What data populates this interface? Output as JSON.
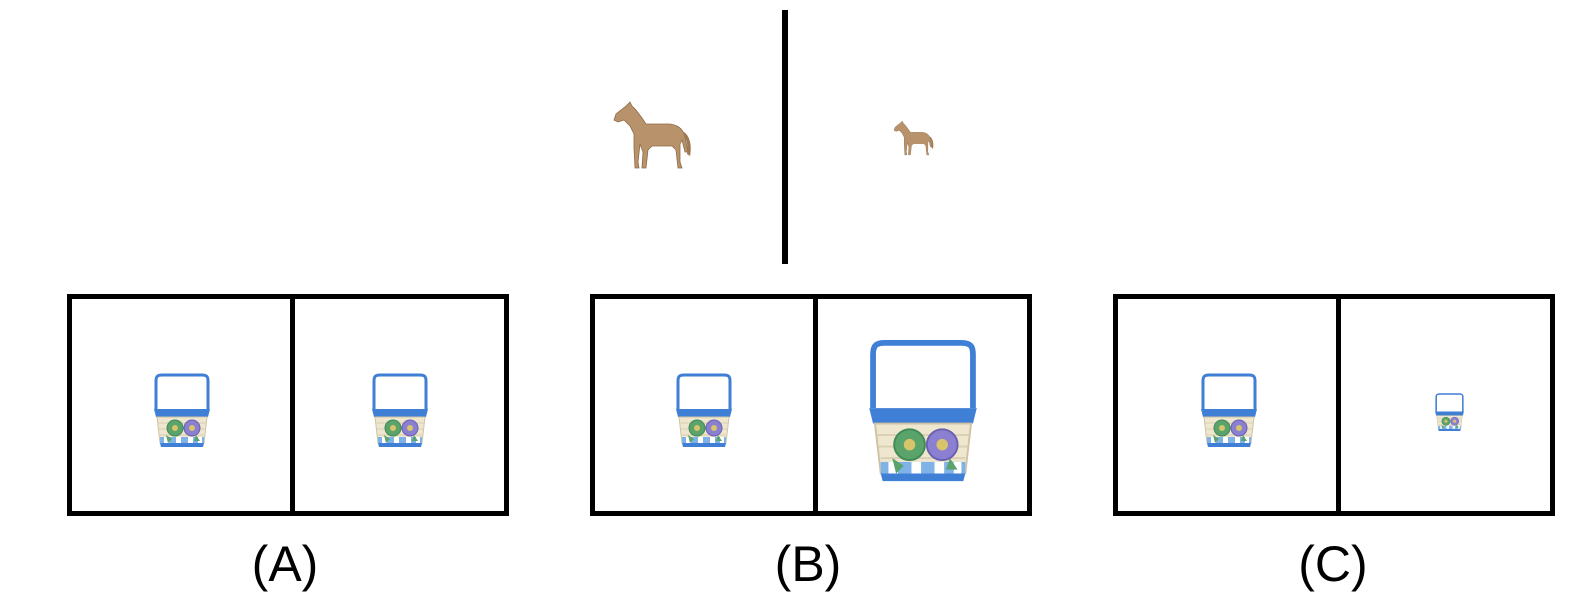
{
  "reference": {
    "left_image": "horse-icon",
    "right_image": "horse-icon"
  },
  "options": [
    {
      "label": "(A)",
      "left_image": "basket-icon",
      "right_image": "basket-icon"
    },
    {
      "label": "(B)",
      "left_image": "basket-icon",
      "right_image": "basket-icon"
    },
    {
      "label": "(C)",
      "left_image": "basket-icon",
      "right_image": "basket-icon"
    }
  ],
  "colors": {
    "horse": "#b8926a",
    "basket_rim": "#3f7fd6",
    "basket_weave": "#efe6cf",
    "flower_green": "#5aa36a",
    "flower_purple": "#8a7fd0"
  }
}
